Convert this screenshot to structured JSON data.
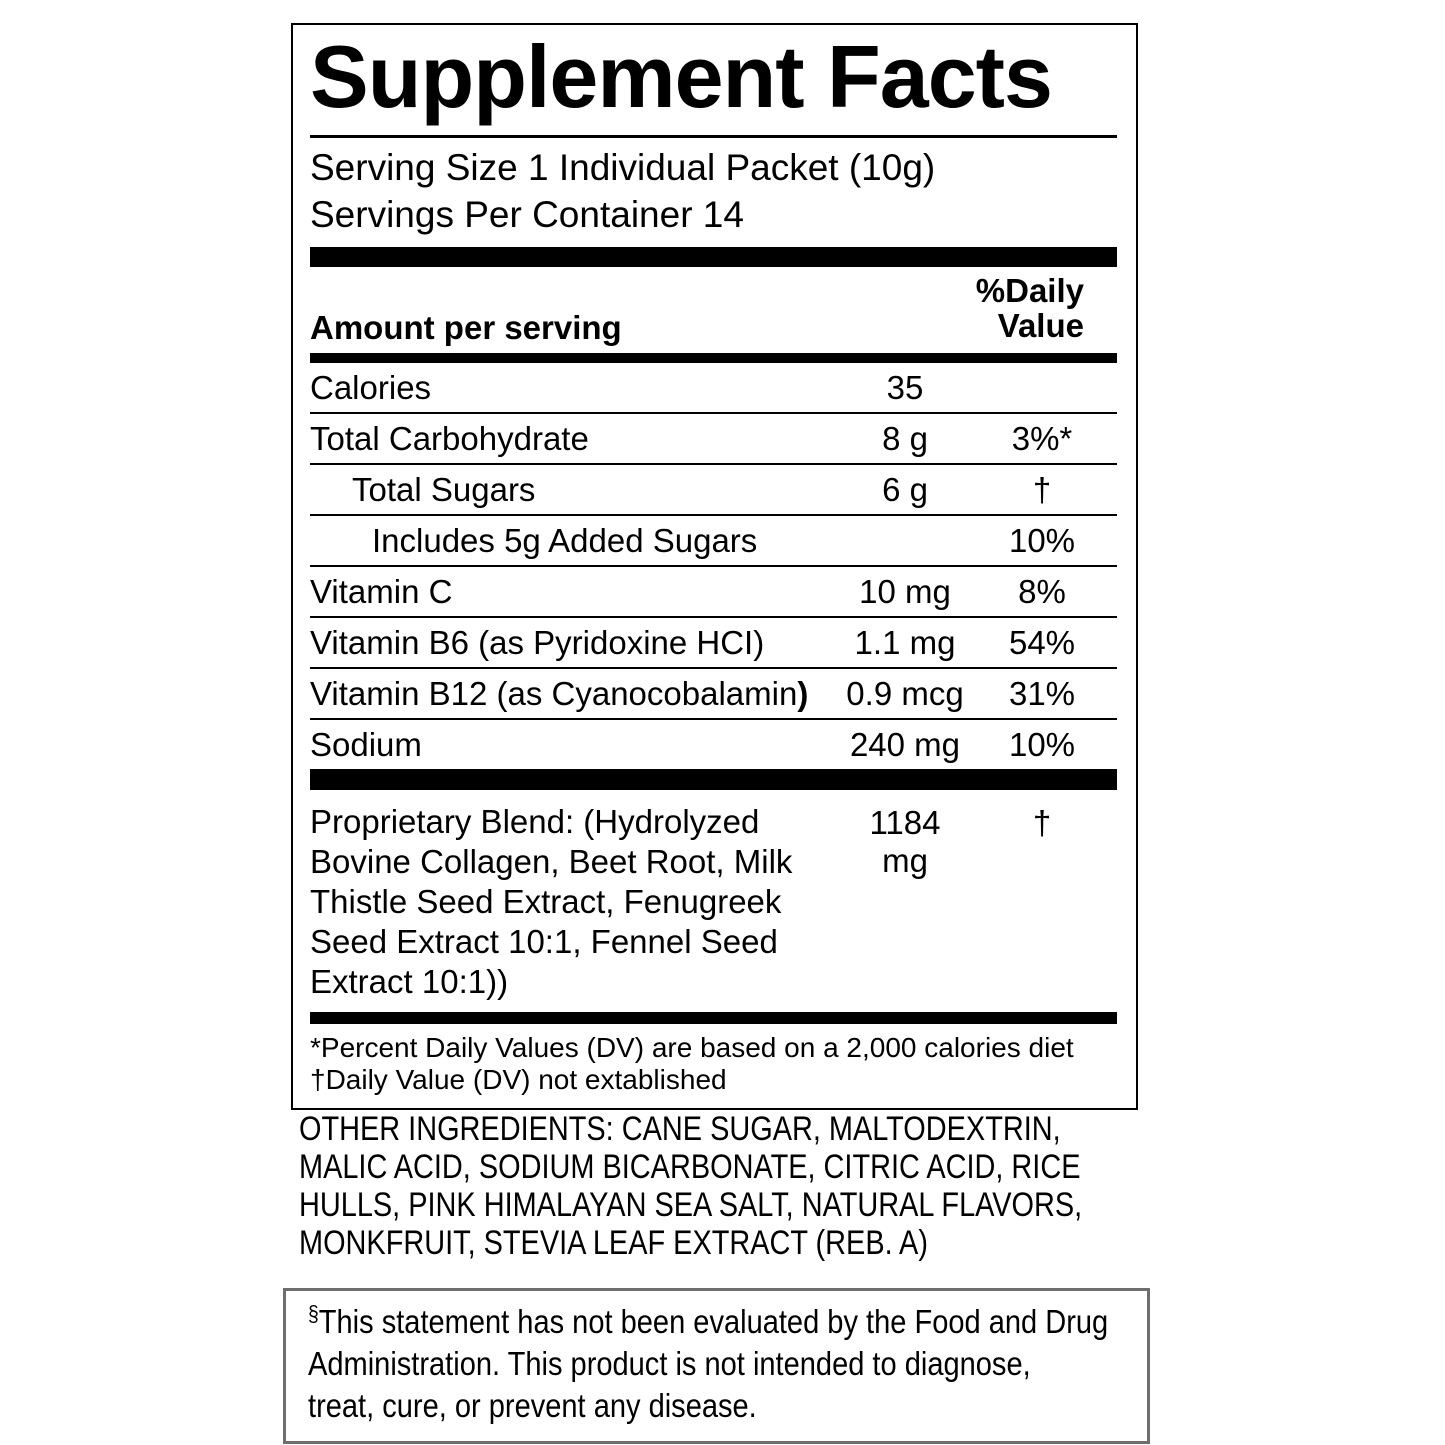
{
  "colors": {
    "text": "#000000",
    "rule": "#000000",
    "disclaimer_border": "#6e6e6e"
  },
  "label": {
    "title": "Supplement Facts",
    "serving_size": "Serving Size 1 Individual Packet (10g)",
    "servings_per_container": "Servings Per Container 14",
    "column_headers": {
      "amount": "Amount per serving",
      "daily_value_line1": "%Daily",
      "daily_value_line2": "Value"
    },
    "rows": [
      {
        "name": "Calories",
        "amount": "35",
        "dv": "",
        "indent": 0
      },
      {
        "name": "Total Carbohydrate",
        "amount": "8 g",
        "dv": "3%*",
        "indent": 0
      },
      {
        "name": "Total Sugars",
        "amount": "6 g",
        "dv": "†",
        "indent": 1
      },
      {
        "name": "Includes 5g Added Sugars",
        "amount": "",
        "dv": "10%",
        "indent": 2
      },
      {
        "name": "Vitamin C",
        "amount": "10 mg",
        "dv": "8%",
        "indent": 0
      },
      {
        "name": "Vitamin B6 (as Pyridoxine HCI)",
        "amount": "1.1 mg",
        "dv": "54%",
        "indent": 0
      },
      {
        "name": "Vitamin B12 (as Cyanocobalamin",
        "name_bold": ")",
        "amount": "0.9 mcg",
        "dv": "31%",
        "indent": 0
      },
      {
        "name": "Sodium",
        "amount": "240 mg",
        "dv": "10%",
        "indent": 0
      }
    ],
    "proprietary_blend": {
      "lines": [
        "Proprietary Blend: (Hydrolyzed",
        "Bovine Collagen, Beet Root, Milk",
        "Thistle Seed Extract, Fenugreek",
        "Seed Extract 10:1, Fennel Seed",
        "Extract 10:1))"
      ],
      "amount": "1184 mg",
      "dv": "†"
    },
    "footnotes": [
      "*Percent Daily Values (DV) are based on a 2,000 calories diet",
      "†Daily Value (DV) not extablished"
    ]
  },
  "other_ingredients": {
    "lines": [
      "OTHER INGREDIENTS: CANE SUGAR, MALTODEXTRIN,",
      "MALIC ACID, SODIUM BICARBONATE, CITRIC ACID, RICE",
      "HULLS, PINK HIMALAYAN SEA SALT, NATURAL FLAVORS,",
      "MONKFRUIT, STEVIA LEAF EXTRACT (REB. A)"
    ]
  },
  "disclaimer": {
    "symbol": "§",
    "lines": [
      "This statement has not been evaluated by the Food and Drug",
      "Administration. This product is not intended to diagnose,",
      "treat, cure, or prevent any disease."
    ]
  }
}
